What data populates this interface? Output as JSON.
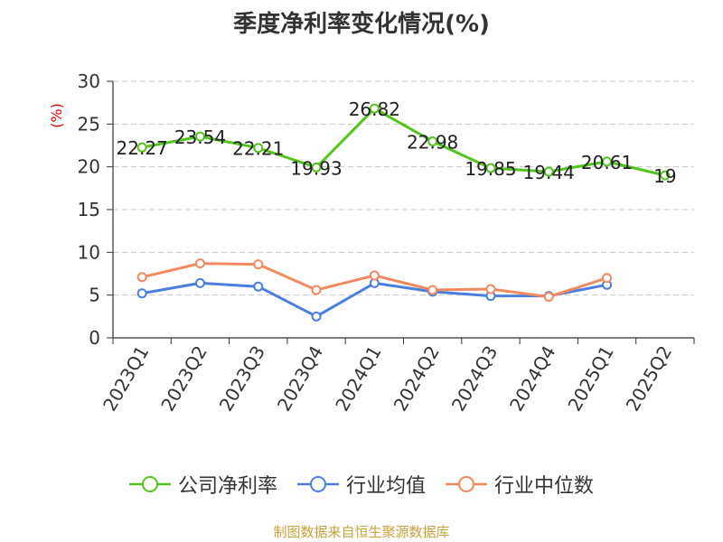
{
  "chart_data": {
    "type": "line",
    "title": "季度净利率变化情况(%)",
    "ylabel": "(%)",
    "xlabel": "",
    "categories": [
      "2023Q1",
      "2023Q2",
      "2023Q3",
      "2023Q4",
      "2024Q1",
      "2024Q2",
      "2024Q3",
      "2024Q4",
      "2025Q1",
      "2025Q2"
    ],
    "ylim": [
      0,
      30
    ],
    "yticks": [
      0,
      5,
      10,
      15,
      20,
      25,
      30
    ],
    "grid": true,
    "legend_position": "bottom",
    "series": [
      {
        "name": "公司净利率",
        "color": "#52c41a",
        "values": [
          22.27,
          23.54,
          22.21,
          19.93,
          26.82,
          22.98,
          19.85,
          19.44,
          20.61,
          19
        ],
        "labels": [
          "22.27",
          "23.54",
          "22.21",
          "19.93",
          "26.82",
          "22.98",
          "19.85",
          "19.44",
          "20.61",
          "19"
        ]
      },
      {
        "name": "行业均值",
        "color": "#4a7fe0",
        "values": [
          5.2,
          6.4,
          6.0,
          2.5,
          6.4,
          5.4,
          4.9,
          4.9,
          6.2,
          null
        ]
      },
      {
        "name": "行业中位数",
        "color": "#f4895f",
        "values": [
          7.1,
          8.7,
          8.6,
          5.6,
          7.3,
          5.6,
          5.7,
          4.8,
          7.0,
          null
        ]
      }
    ]
  },
  "source": "制图数据来自恒生聚源数据库"
}
